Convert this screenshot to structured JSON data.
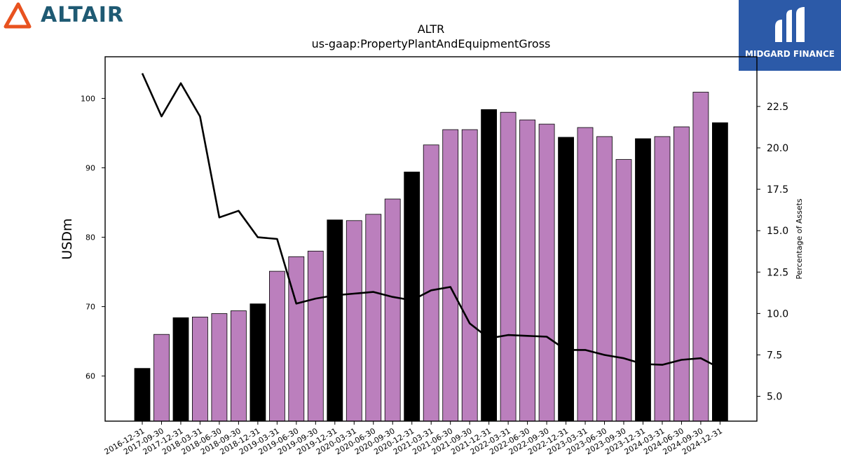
{
  "header": {
    "left_logo_text": "ALTAIR",
    "left_logo_icon": "altair-triangle-logo-icon",
    "right_logo_text": "MIDGARD FINANCE",
    "right_logo_icon": "midgard-logo-icon",
    "colors": {
      "altair_orange": "#e8521f",
      "altair_text": "#1f5a73",
      "midgard_bg": "#2c5aa8"
    }
  },
  "chart_data": {
    "type": "bar",
    "title": "ALTR",
    "subtitle": "us-gaap:PropertyPlantAndEquipmentGross",
    "ylabel": "USDm",
    "y2label": "Percentage of Assets",
    "ylim": [
      53.5,
      106
    ],
    "y2lim": [
      3.5,
      25.5
    ],
    "yticks": [
      60,
      70,
      80,
      90,
      100
    ],
    "y2ticks": [
      5.0,
      7.5,
      10.0,
      12.5,
      15.0,
      17.5,
      20.0,
      22.5
    ],
    "y2tick_labels": [
      "5.0",
      "7.5",
      "10.0",
      "12.5",
      "15.0",
      "17.5",
      "20.0",
      "22.5"
    ],
    "categories": [
      "2016-12-31",
      "2017-09-30",
      "2017-12-31",
      "2018-03-31",
      "2018-06-30",
      "2018-09-30",
      "2018-12-31",
      "2019-03-31",
      "2019-06-30",
      "2019-09-30",
      "2019-12-31",
      "2020-03-31",
      "2020-06-30",
      "2020-09-30",
      "2020-12-31",
      "2021-03-31",
      "2021-06-30",
      "2021-09-30",
      "2021-12-31",
      "2022-03-31",
      "2022-06-30",
      "2022-09-30",
      "2022-12-31",
      "2023-03-31",
      "2023-06-30",
      "2023-09-30",
      "2023-12-31",
      "2024-03-31",
      "2024-06-30",
      "2024-09-30",
      "2024-12-31"
    ],
    "series": [
      {
        "kind": "bar",
        "axis": "left",
        "values": [
          61.1,
          66.0,
          68.4,
          68.5,
          69.0,
          69.4,
          70.4,
          75.1,
          77.2,
          78.0,
          82.5,
          82.4,
          83.3,
          85.5,
          89.4,
          93.3,
          95.5,
          95.5,
          98.4,
          98.0,
          96.9,
          96.3,
          94.4,
          95.8,
          94.5,
          91.2,
          94.2,
          94.5,
          95.9,
          100.9,
          96.5
        ],
        "annual_flags": [
          true,
          false,
          true,
          false,
          false,
          false,
          true,
          false,
          false,
          false,
          true,
          false,
          false,
          false,
          true,
          false,
          false,
          false,
          true,
          false,
          false,
          false,
          true,
          false,
          false,
          false,
          true,
          false,
          false,
          false,
          true
        ]
      },
      {
        "kind": "line",
        "axis": "right",
        "values": [
          24.5,
          21.9,
          23.9,
          21.9,
          15.8,
          16.2,
          14.6,
          14.5,
          10.6,
          10.9,
          11.1,
          11.2,
          11.3,
          11.0,
          10.8,
          11.4,
          11.6,
          9.4,
          8.5,
          8.7,
          8.65,
          8.6,
          7.8,
          7.8,
          7.5,
          7.3,
          6.95,
          6.9,
          7.2,
          7.3,
          6.7
        ]
      }
    ],
    "colors": {
      "annual_bar": "#000000",
      "quarter_bar": "#bb7fbd",
      "line": "#000000"
    }
  }
}
